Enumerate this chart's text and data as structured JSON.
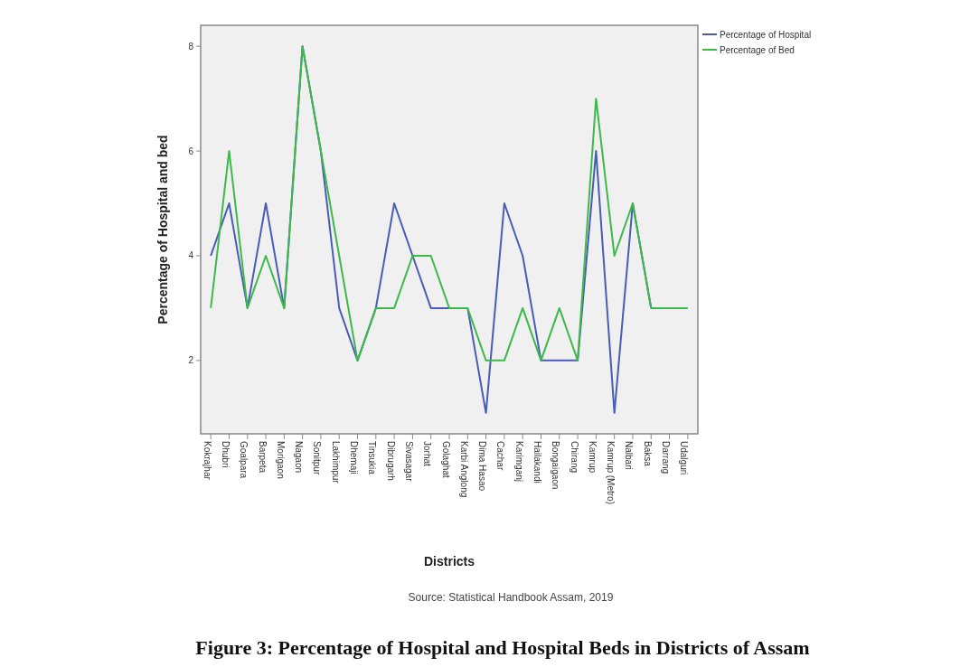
{
  "chart_data": {
    "type": "line",
    "title": "Figure 3: Percentage of Hospital and Hospital Beds in Districts of Assam",
    "xlabel": "Districts",
    "ylabel": "Percentage of Hospital and bed",
    "annotations": [
      "Source: Statistical Handbook Assam, 2019"
    ],
    "categories": [
      "Kokrajhar",
      "Dhubri",
      "Goalpara",
      "Barpeta",
      "Morigaon",
      "Nagaon",
      "Sonitpur",
      "Lakhimpur",
      "Dhemaji",
      "Tinsukia",
      "Dibrugarh",
      "Sivasagar",
      "Jorhat",
      "Golaghat",
      "Karbi Anglong",
      "Dima Hasao",
      "Cachar",
      "Karimganj",
      "Hailakandi",
      "Bongaigaon",
      "Chirang",
      "Kamrup",
      "Kamrup (Metro)",
      "Nalbari",
      "Baksa",
      "Darrang",
      "Udalguri"
    ],
    "series": [
      {
        "name": "Percentage of Hospital",
        "color": "#4a5cb5",
        "values": [
          4,
          5,
          3,
          5,
          3,
          8,
          6,
          3,
          2,
          3,
          5,
          4,
          3,
          3,
          3,
          1,
          5,
          4,
          2,
          2,
          2,
          6,
          1,
          5,
          3,
          null,
          null
        ]
      },
      {
        "name": "Percentage of Bed",
        "color": "#3cb94a",
        "values": [
          3,
          6,
          3,
          4,
          3,
          8,
          6,
          4,
          2,
          3,
          3,
          4,
          4,
          3,
          3,
          2,
          2,
          3,
          2,
          3,
          2,
          7,
          4,
          5,
          3,
          3,
          3
        ]
      }
    ],
    "ylim": [
      0.6,
      8.4
    ],
    "yticks": [
      2,
      4,
      6,
      8
    ],
    "legend": "top right",
    "grid": false,
    "line_style": "solid",
    "marker": "none"
  }
}
